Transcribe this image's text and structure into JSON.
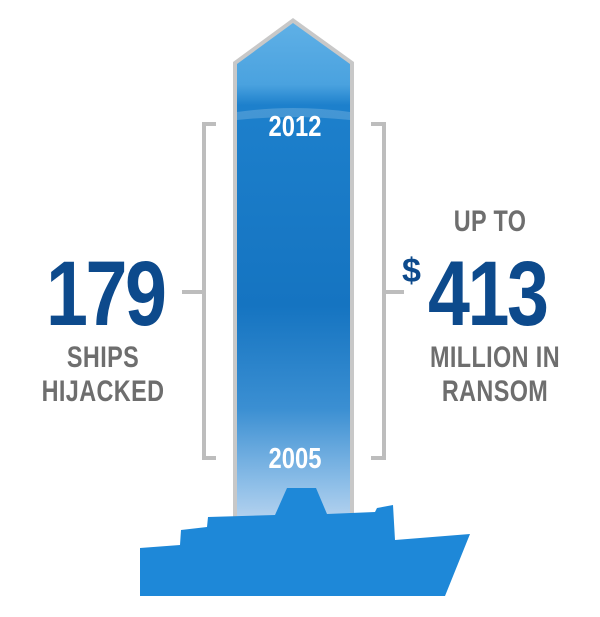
{
  "left_stat": {
    "number": "179",
    "caption_line1": "SHIPS",
    "caption_line2": "HIJACKED"
  },
  "right_stat": {
    "prefix": "UP TO",
    "currency": "$",
    "number": "413",
    "caption_line1": "MILLION IN",
    "caption_line2": "RANSOM"
  },
  "timeline": {
    "end_year": "2012",
    "start_year": "2005"
  },
  "colors": {
    "dark_blue": "#0d4a8c",
    "mid_blue": "#1b78c6",
    "light_blue": "#5aaae0",
    "ship_blue": "#1e88d8",
    "gray": "#bdbdbd",
    "caption_gray": "#6e6e6e"
  }
}
